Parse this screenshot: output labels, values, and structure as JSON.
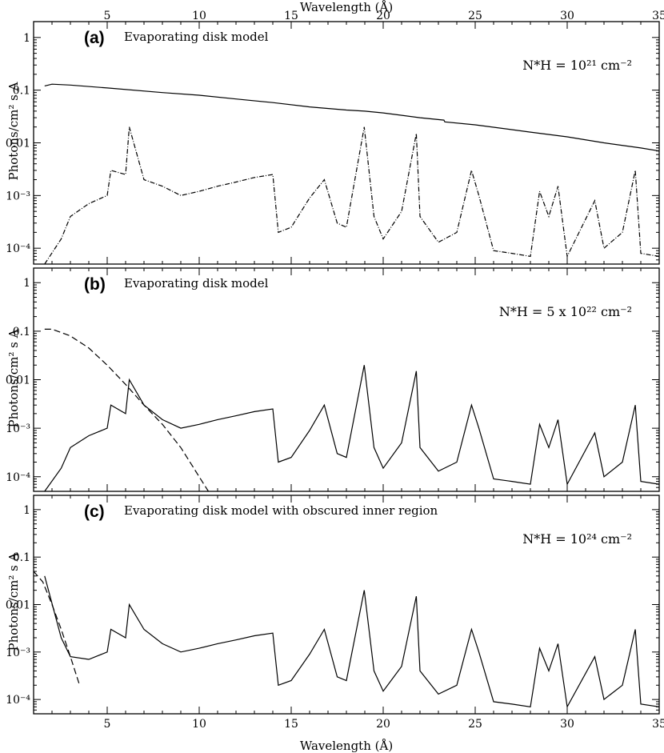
{
  "figure": {
    "x_axis_title": "Wavelength (Å)",
    "y_axis_title": "Photons/cm² s A",
    "x_ticks": [
      5,
      10,
      15,
      20,
      25,
      30,
      35
    ],
    "y_ticks": [
      {
        "value": 1,
        "label": "1"
      },
      {
        "value": 0.1,
        "label": "0.1"
      },
      {
        "value": 0.01,
        "label": "0.01"
      },
      {
        "value": 0.001,
        "label": "10⁻³"
      },
      {
        "value": 0.0001,
        "label": "10⁻⁴"
      }
    ]
  },
  "panels": [
    {
      "letter": "(a)",
      "title": "Evaporating disk model",
      "nh_text": "N*H = 10²¹ cm⁻²"
    },
    {
      "letter": "(b)",
      "title": "Evaporating disk model",
      "nh_text": "N*H = 5 x 10²² cm⁻²"
    },
    {
      "letter": "(c)",
      "title": "Evaporating disk model with obscured inner region",
      "nh_text": "N*H = 10²⁴ cm⁻²"
    }
  ],
  "chart_data": [
    {
      "type": "line",
      "title": "Evaporating disk model",
      "annotation": "N*H = 10²¹ cm⁻²",
      "xlabel": "Wavelength (Å)",
      "ylabel": "Photons/cm² s A",
      "xlim": [
        1,
        35
      ],
      "ylim": [
        5e-05,
        2
      ],
      "yscale": "log",
      "series": [
        {
          "style": "solid",
          "x": [
            1.6,
            2,
            3,
            5,
            8,
            10,
            12,
            14,
            16,
            18,
            19,
            20,
            22,
            23.3,
            23.35,
            25,
            28,
            30,
            32,
            34,
            35
          ],
          "y": [
            0.12,
            0.13,
            0.125,
            0.11,
            0.09,
            0.08,
            0.068,
            0.058,
            0.048,
            0.042,
            0.04,
            0.037,
            0.03,
            0.027,
            0.025,
            0.022,
            0.016,
            0.013,
            0.01,
            0.008,
            0.007
          ]
        },
        {
          "style": "dash-dot",
          "x": [
            1.6,
            2.5,
            3,
            4,
            5,
            5.2,
            6,
            6.2,
            7,
            8,
            9,
            10,
            11,
            12,
            13,
            14,
            14.3,
            15,
            16,
            16.8,
            17.5,
            18,
            18.97,
            19.5,
            20,
            21,
            21.8,
            22,
            23,
            24,
            24.8,
            25.2,
            26,
            27,
            28,
            28.5,
            29,
            29.5,
            30,
            31.5,
            32,
            33,
            33.7,
            34,
            35
          ],
          "y": [
            5e-05,
            0.00015,
            0.0004,
            0.0007,
            0.001,
            0.003,
            0.0025,
            0.02,
            0.002,
            0.0015,
            0.001,
            0.0012,
            0.0015,
            0.0018,
            0.0022,
            0.0025,
            0.0002,
            0.00025,
            0.0009,
            0.002,
            0.0003,
            0.00025,
            0.02,
            0.0004,
            0.00015,
            0.0005,
            0.015,
            0.0004,
            0.00013,
            0.0002,
            0.003,
            0.001,
            9e-05,
            8e-05,
            7e-05,
            0.0012,
            0.0004,
            0.0015,
            7e-05,
            0.0008,
            0.0001,
            0.0002,
            0.003,
            8e-05,
            7e-05
          ]
        }
      ]
    },
    {
      "type": "line",
      "title": "Evaporating disk model",
      "annotation": "N*H = 5 x 10²² cm⁻²",
      "xlabel": "Wavelength (Å)",
      "ylabel": "Photons/cm² s A",
      "xlim": [
        1,
        35
      ],
      "ylim": [
        5e-05,
        2
      ],
      "yscale": "log",
      "series": [
        {
          "style": "dashed",
          "x": [
            1.6,
            2,
            3,
            4,
            5,
            6,
            7,
            8,
            9,
            10,
            10.5
          ],
          "y": [
            0.11,
            0.11,
            0.08,
            0.045,
            0.02,
            0.008,
            0.003,
            0.0012,
            0.0004,
            0.0001,
            5e-05
          ]
        },
        {
          "style": "solid",
          "x": [
            1.6,
            2.5,
            3,
            4,
            5,
            5.2,
            6,
            6.2,
            7,
            8,
            9,
            10,
            11,
            12,
            13,
            14,
            14.3,
            15,
            16,
            16.8,
            17.5,
            18,
            18.97,
            19.5,
            20,
            21,
            21.8,
            22,
            23,
            24,
            24.8,
            25.2,
            26,
            27,
            28,
            28.5,
            29,
            29.5,
            30,
            31.5,
            32,
            33,
            33.7,
            34,
            35
          ],
          "y": [
            5e-05,
            0.00015,
            0.0004,
            0.0007,
            0.001,
            0.003,
            0.002,
            0.01,
            0.003,
            0.0015,
            0.001,
            0.0012,
            0.0015,
            0.0018,
            0.0022,
            0.0025,
            0.0002,
            0.00025,
            0.0009,
            0.003,
            0.0003,
            0.00025,
            0.02,
            0.0004,
            0.00015,
            0.0005,
            0.015,
            0.0004,
            0.00013,
            0.0002,
            0.003,
            0.001,
            9e-05,
            8e-05,
            7e-05,
            0.0012,
            0.0004,
            0.0015,
            7e-05,
            0.0008,
            0.0001,
            0.0002,
            0.003,
            8e-05,
            7e-05
          ]
        }
      ]
    },
    {
      "type": "line",
      "title": "Evaporating disk model with obscured inner region",
      "annotation": "N*H = 10²⁴ cm⁻²",
      "xlabel": "Wavelength (Å)",
      "ylabel": "Photons/cm² s A",
      "xlim": [
        1,
        35
      ],
      "ylim": [
        5e-05,
        2
      ],
      "yscale": "log",
      "series": [
        {
          "style": "dashed",
          "x": [
            1.0,
            1.5,
            2,
            2.5,
            3,
            3.5
          ],
          "y": [
            0.05,
            0.03,
            0.01,
            0.003,
            0.0008,
            0.0002
          ]
        },
        {
          "style": "solid",
          "x": [
            1.6,
            2.5,
            3,
            4,
            5,
            5.2,
            6,
            6.2,
            7,
            8,
            9,
            10,
            11,
            12,
            13,
            14,
            14.3,
            15,
            16,
            16.8,
            17.5,
            18,
            18.97,
            19.5,
            20,
            21,
            21.8,
            22,
            23,
            24,
            24.8,
            25.2,
            26,
            27,
            28,
            28.5,
            29,
            29.5,
            30,
            31.5,
            32,
            33,
            33.7,
            34,
            35
          ],
          "y": [
            0.04,
            0.002,
            0.0008,
            0.0007,
            0.001,
            0.003,
            0.002,
            0.01,
            0.003,
            0.0015,
            0.001,
            0.0012,
            0.0015,
            0.0018,
            0.0022,
            0.0025,
            0.0002,
            0.00025,
            0.0009,
            0.003,
            0.0003,
            0.00025,
            0.02,
            0.0004,
            0.00015,
            0.0005,
            0.015,
            0.0004,
            0.00013,
            0.0002,
            0.003,
            0.001,
            9e-05,
            8e-05,
            7e-05,
            0.0012,
            0.0004,
            0.0015,
            7e-05,
            0.0008,
            0.0001,
            0.0002,
            0.003,
            8e-05,
            7e-05
          ]
        }
      ]
    }
  ]
}
